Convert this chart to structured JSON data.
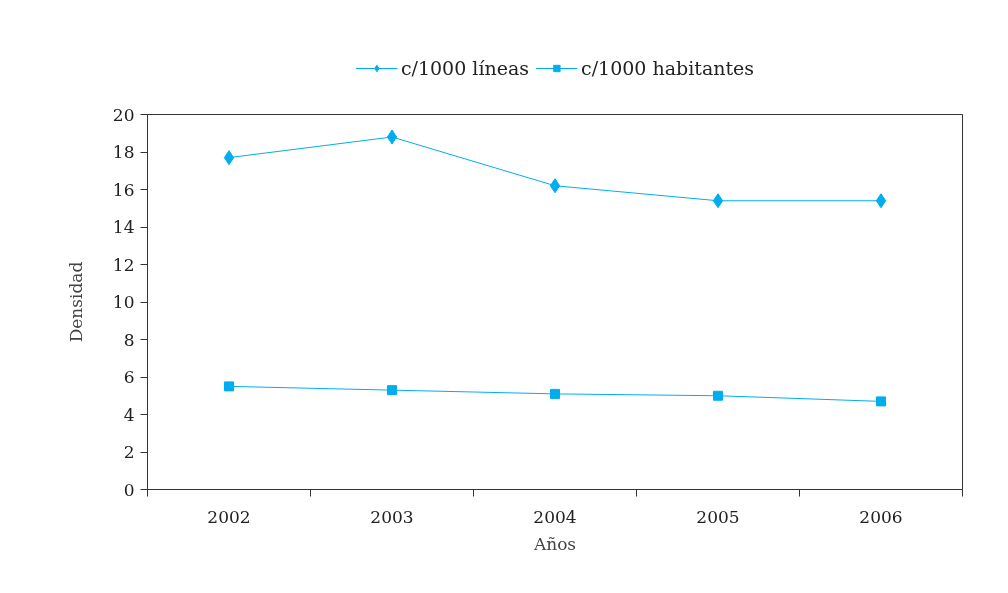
{
  "chart_data": {
    "type": "line",
    "categories": [
      "2002",
      "2003",
      "2004",
      "2005",
      "2006"
    ],
    "xlabel": "Años",
    "ylabel": "Densidad",
    "ylim": [
      0,
      20
    ],
    "yticks": [
      0,
      2,
      4,
      6,
      8,
      10,
      12,
      14,
      16,
      18,
      20
    ],
    "grid": false,
    "legend": "top",
    "series": [
      {
        "name": "c/1000 líneas",
        "color": "#00aeef",
        "marker": "diamond",
        "values": [
          17.7,
          18.8,
          16.2,
          15.4,
          15.4
        ]
      },
      {
        "name": "c/1000 habitantes",
        "color": "#00aeef",
        "marker": "square",
        "values": [
          5.5,
          5.3,
          5.1,
          5.0,
          4.7
        ]
      }
    ]
  }
}
